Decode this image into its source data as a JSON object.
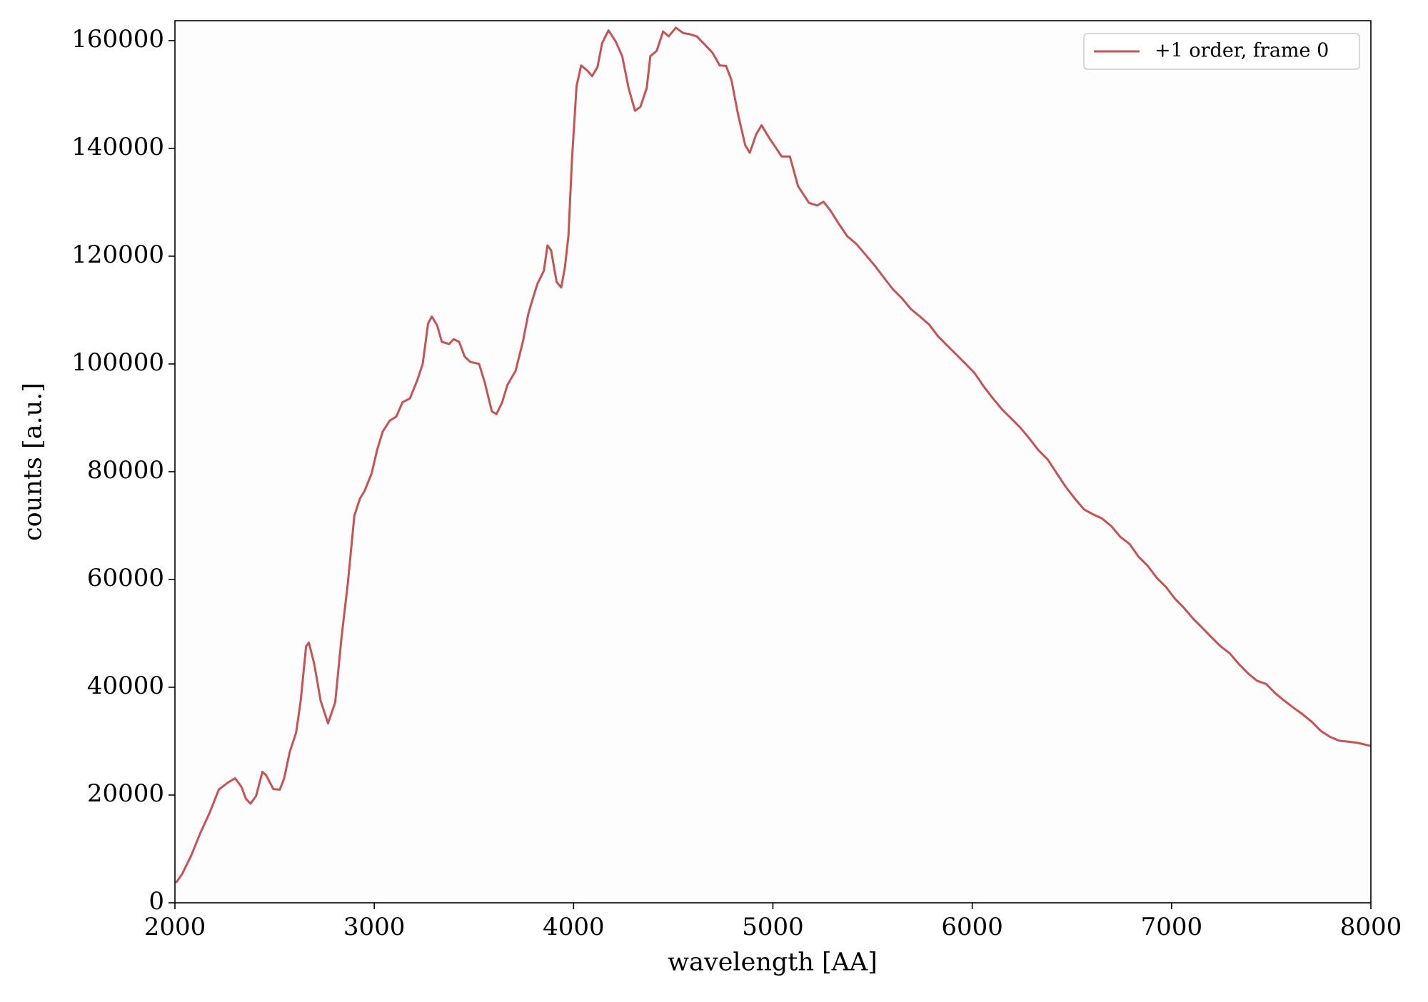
{
  "chart_data": {
    "type": "line",
    "xlabel": "wavelength [AA]",
    "ylabel": "counts [a.u.]",
    "xlim": [
      2000,
      8000
    ],
    "ylim": [
      0,
      163700
    ],
    "xticks": [
      2000,
      3000,
      4000,
      5000,
      6000,
      7000,
      8000
    ],
    "yticks": [
      0,
      20000,
      40000,
      60000,
      80000,
      100000,
      120000,
      140000,
      160000
    ],
    "legend_loc": "upper right",
    "x": [
      2005,
      2037,
      2082,
      2128,
      2174,
      2220,
      2265,
      2302,
      2334,
      2356,
      2379,
      2407,
      2439,
      2457,
      2494,
      2526,
      2548,
      2576,
      2608,
      2631,
      2658,
      2672,
      2699,
      2731,
      2768,
      2804,
      2836,
      2868,
      2900,
      2928,
      2951,
      2987,
      3014,
      3042,
      3078,
      3110,
      3142,
      3179,
      3216,
      3243,
      3270,
      3289,
      3316,
      3339,
      3376,
      3398,
      3426,
      3453,
      3481,
      3526,
      3554,
      3590,
      3613,
      3641,
      3668,
      3709,
      3746,
      3773,
      3796,
      3819,
      3851,
      3869,
      3887,
      3915,
      3938,
      3956,
      3974,
      3992,
      4015,
      4038,
      4070,
      4093,
      4120,
      4143,
      4175,
      4212,
      4244,
      4276,
      4308,
      4335,
      4367,
      4385,
      4417,
      4449,
      4477,
      4513,
      4550,
      4582,
      4618,
      4660,
      4696,
      4733,
      4765,
      4792,
      4824,
      4861,
      4884,
      4916,
      4943,
      4984,
      5044,
      5085,
      5126,
      5181,
      5222,
      5254,
      5290,
      5327,
      5373,
      5418,
      5464,
      5510,
      5555,
      5601,
      5647,
      5692,
      5738,
      5784,
      5829,
      5875,
      5921,
      5967,
      6012,
      6058,
      6104,
      6149,
      6195,
      6241,
      6286,
      6332,
      6378,
      6424,
      6469,
      6515,
      6561,
      6606,
      6652,
      6698,
      6743,
      6789,
      6835,
      6881,
      6926,
      6972,
      7018,
      7063,
      7109,
      7155,
      7200,
      7246,
      7292,
      7338,
      7383,
      7429,
      7475,
      7520,
      7566,
      7612,
      7657,
      7703,
      7749,
      7795,
      7840,
      7886,
      7932,
      8000
    ],
    "series": [
      {
        "name": "+1 order, frame 0",
        "color": "#c75253",
        "values": [
          3700,
          5400,
          8800,
          13000,
          16700,
          21000,
          22300,
          23100,
          21500,
          19300,
          18400,
          19800,
          24300,
          23700,
          21100,
          21000,
          23100,
          28000,
          31600,
          37500,
          47600,
          48300,
          44300,
          37500,
          33300,
          37200,
          49300,
          59500,
          71800,
          75000,
          76400,
          79700,
          84000,
          87400,
          89500,
          90200,
          92900,
          93600,
          97000,
          100000,
          107500,
          108800,
          107100,
          104100,
          103700,
          104600,
          104100,
          101400,
          100400,
          100000,
          96600,
          91200,
          90700,
          92800,
          96100,
          98700,
          104200,
          109300,
          112200,
          114900,
          117300,
          122000,
          121100,
          115200,
          114200,
          117800,
          123700,
          138000,
          151600,
          155400,
          154400,
          153400,
          155100,
          159500,
          161900,
          159800,
          157100,
          151200,
          147000,
          147700,
          151200,
          157100,
          158100,
          161700,
          160800,
          162400,
          161400,
          161200,
          160800,
          159200,
          157800,
          155400,
          155300,
          152700,
          146500,
          140600,
          139200,
          142600,
          144300,
          141800,
          138500,
          138500,
          133000,
          129900,
          129400,
          130100,
          128400,
          126200,
          123700,
          122300,
          120300,
          118300,
          116100,
          113900,
          112200,
          110200,
          108800,
          107300,
          105100,
          103400,
          101700,
          100000,
          98300,
          95800,
          93600,
          91600,
          89900,
          88200,
          86200,
          84000,
          82300,
          79700,
          77200,
          75000,
          73000,
          72100,
          71300,
          69900,
          67900,
          66600,
          64200,
          62500,
          60300,
          58600,
          56400,
          54700,
          52700,
          51000,
          49300,
          47600,
          46300,
          44300,
          42600,
          41200,
          40600,
          38900,
          37500,
          36200,
          35000,
          33600,
          31900,
          30800,
          30100,
          29900,
          29700,
          29100
        ]
      }
    ]
  }
}
